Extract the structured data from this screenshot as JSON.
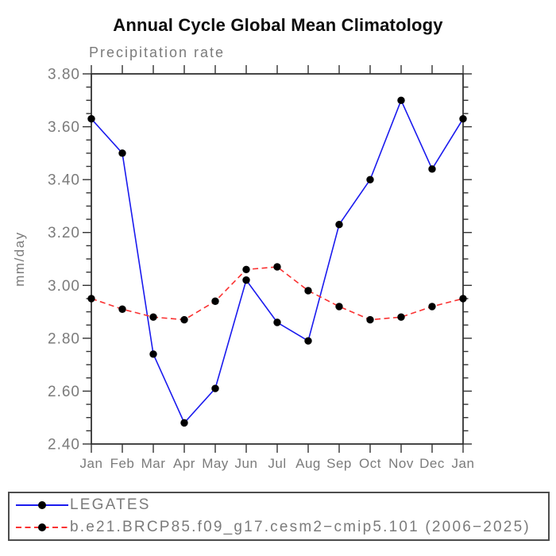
{
  "title": "Annual Cycle Global Mean Climatology",
  "subtitle": "Precipitation rate",
  "ylabel": "mm/day",
  "colors": {
    "frame": "#262626",
    "tick": "#333333",
    "label_gray": "#7b7b7b",
    "marker": "#000000",
    "series_blue": "#1a1aee",
    "series_red": "#fa3232"
  },
  "ytick_labels": [
    "3.80",
    "3.60",
    "3.40",
    "3.20",
    "3.00",
    "2.80",
    "2.60",
    "2.40"
  ],
  "chart_data": {
    "type": "line",
    "title": "Annual Cycle Global Mean Climatology",
    "subtitle": "Precipitation rate",
    "xlabel": "",
    "ylabel": "mm/day",
    "x": [
      "Jan",
      "Feb",
      "Mar",
      "Apr",
      "May",
      "Jun",
      "Jul",
      "Aug",
      "Sep",
      "Oct",
      "Nov",
      "Dec",
      "Jan"
    ],
    "ylim": [
      2.4,
      3.8
    ],
    "ytick_major": 0.2,
    "ytick_minor": 0.05,
    "grid": false,
    "legend_position": "bottom-outside-box",
    "series": [
      {
        "name": "LEGATES",
        "color": "#1a1aee",
        "line_style": "solid",
        "marker": "filled-circle",
        "marker_color": "#000000",
        "values": [
          3.63,
          3.5,
          2.74,
          2.48,
          2.61,
          3.02,
          2.86,
          2.79,
          3.23,
          3.4,
          3.7,
          3.44,
          3.63
        ]
      },
      {
        "name": "b.e21.BRCP85.f09_g17.cesm2−cmip5.101 (2006−2025)",
        "color": "#fa3232",
        "line_style": "dashed",
        "marker": "filled-circle",
        "marker_color": "#000000",
        "values": [
          2.95,
          2.91,
          2.88,
          2.87,
          2.94,
          3.06,
          3.07,
          2.98,
          2.92,
          2.87,
          2.88,
          2.92,
          2.95
        ]
      }
    ]
  }
}
